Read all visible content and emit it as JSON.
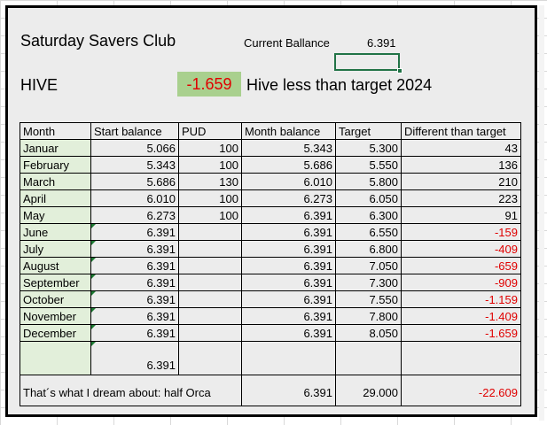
{
  "club_name": "Saturday Savers Club",
  "current_balance": {
    "label": "Current Ballance",
    "value": "6.391"
  },
  "hive": {
    "label": "HIVE",
    "value": "-1.659",
    "note": "Hive less than  target 2024"
  },
  "colors": {
    "negative": "#e00000",
    "month_fill": "#e2efda",
    "highlight_fill": "#a9d08e",
    "selection": "#217346"
  },
  "table": {
    "headers": [
      "Month",
      "Start balance",
      "PUD",
      "Month balance",
      "Target",
      "Different than target"
    ],
    "rows": [
      {
        "month": "Januar",
        "start": "5.066",
        "pud": "100",
        "balance": "5.343",
        "target": "5.300",
        "diff": "43"
      },
      {
        "month": "February",
        "start": "5.343",
        "pud": "100",
        "balance": "5.686",
        "target": "5.550",
        "diff": "136"
      },
      {
        "month": "March",
        "start": "5.686",
        "pud": "130",
        "balance": "6.010",
        "target": "5.800",
        "diff": "210"
      },
      {
        "month": "April",
        "start": "6.010",
        "pud": "100",
        "balance": "6.273",
        "target": "6.050",
        "diff": "223"
      },
      {
        "month": "May",
        "start": "6.273",
        "pud": "100",
        "balance": "6.391",
        "target": "6.300",
        "diff": "91"
      },
      {
        "month": "June",
        "start": "6.391",
        "pud": "",
        "balance": "6.391",
        "target": "6.550",
        "diff": "-159"
      },
      {
        "month": "July",
        "start": "6.391",
        "pud": "",
        "balance": "6.391",
        "target": "6.800",
        "diff": "-409"
      },
      {
        "month": "August",
        "start": "6.391",
        "pud": "",
        "balance": "6.391",
        "target": "7.050",
        "diff": "-659"
      },
      {
        "month": "September",
        "start": "6.391",
        "pud": "",
        "balance": "6.391",
        "target": "7.300",
        "diff": "-909"
      },
      {
        "month": "October",
        "start": "6.391",
        "pud": "",
        "balance": "6.391",
        "target": "7.550",
        "diff": "-1.159"
      },
      {
        "month": "November",
        "start": "6.391",
        "pud": "",
        "balance": "6.391",
        "target": "7.800",
        "diff": "-1.409"
      },
      {
        "month": "December",
        "start": "6.391",
        "pud": "",
        "balance": "6.391",
        "target": "8.050",
        "diff": "-1.659"
      }
    ],
    "blank_row": {
      "start": "6.391"
    },
    "footer": {
      "label": "That´s what I dream about: half Orca",
      "balance": "6.391",
      "target": "29.000",
      "diff": "-22.609"
    }
  }
}
